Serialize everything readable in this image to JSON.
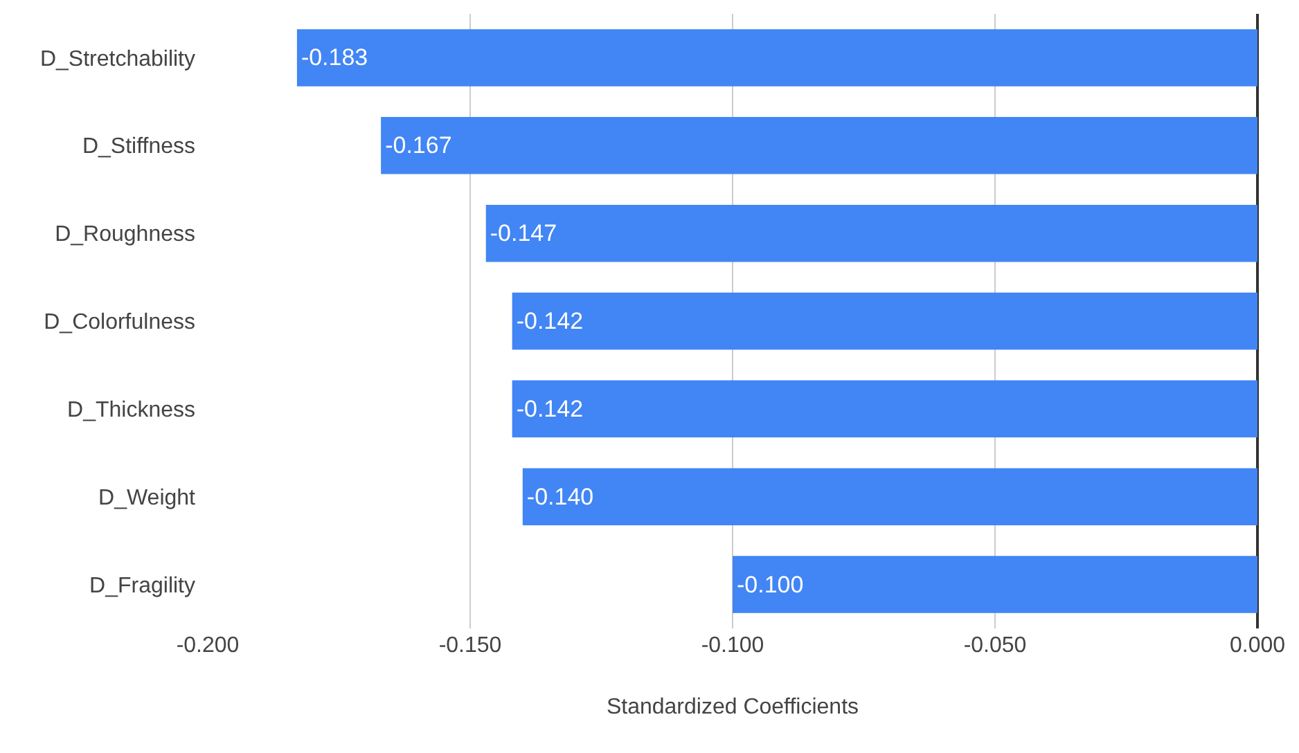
{
  "chart_data": {
    "type": "bar",
    "orientation": "horizontal",
    "xlabel": "Standardized Coefficients",
    "categories": [
      "D_Stretchability",
      "D_Stiffness",
      "D_Roughness",
      "D_Colorfulness",
      "D_Thickness",
      "D_Weight",
      "D_Fragility"
    ],
    "values": [
      -0.183,
      -0.167,
      -0.147,
      -0.142,
      -0.142,
      -0.14,
      -0.1
    ],
    "value_labels": [
      "-0.183",
      "-0.167",
      "-0.147",
      "-0.142",
      "-0.142",
      "-0.140",
      "-0.100"
    ],
    "color": "#4285f4",
    "xlim": [
      -0.2,
      0
    ],
    "xticks": [
      {
        "value": -0.2,
        "label": "-0.200"
      },
      {
        "value": -0.15,
        "label": "-0.150"
      },
      {
        "value": -0.1,
        "label": "-0.100"
      },
      {
        "value": -0.05,
        "label": "-0.050"
      },
      {
        "value": 0,
        "label": "0.000"
      }
    ],
    "grid": "x"
  }
}
